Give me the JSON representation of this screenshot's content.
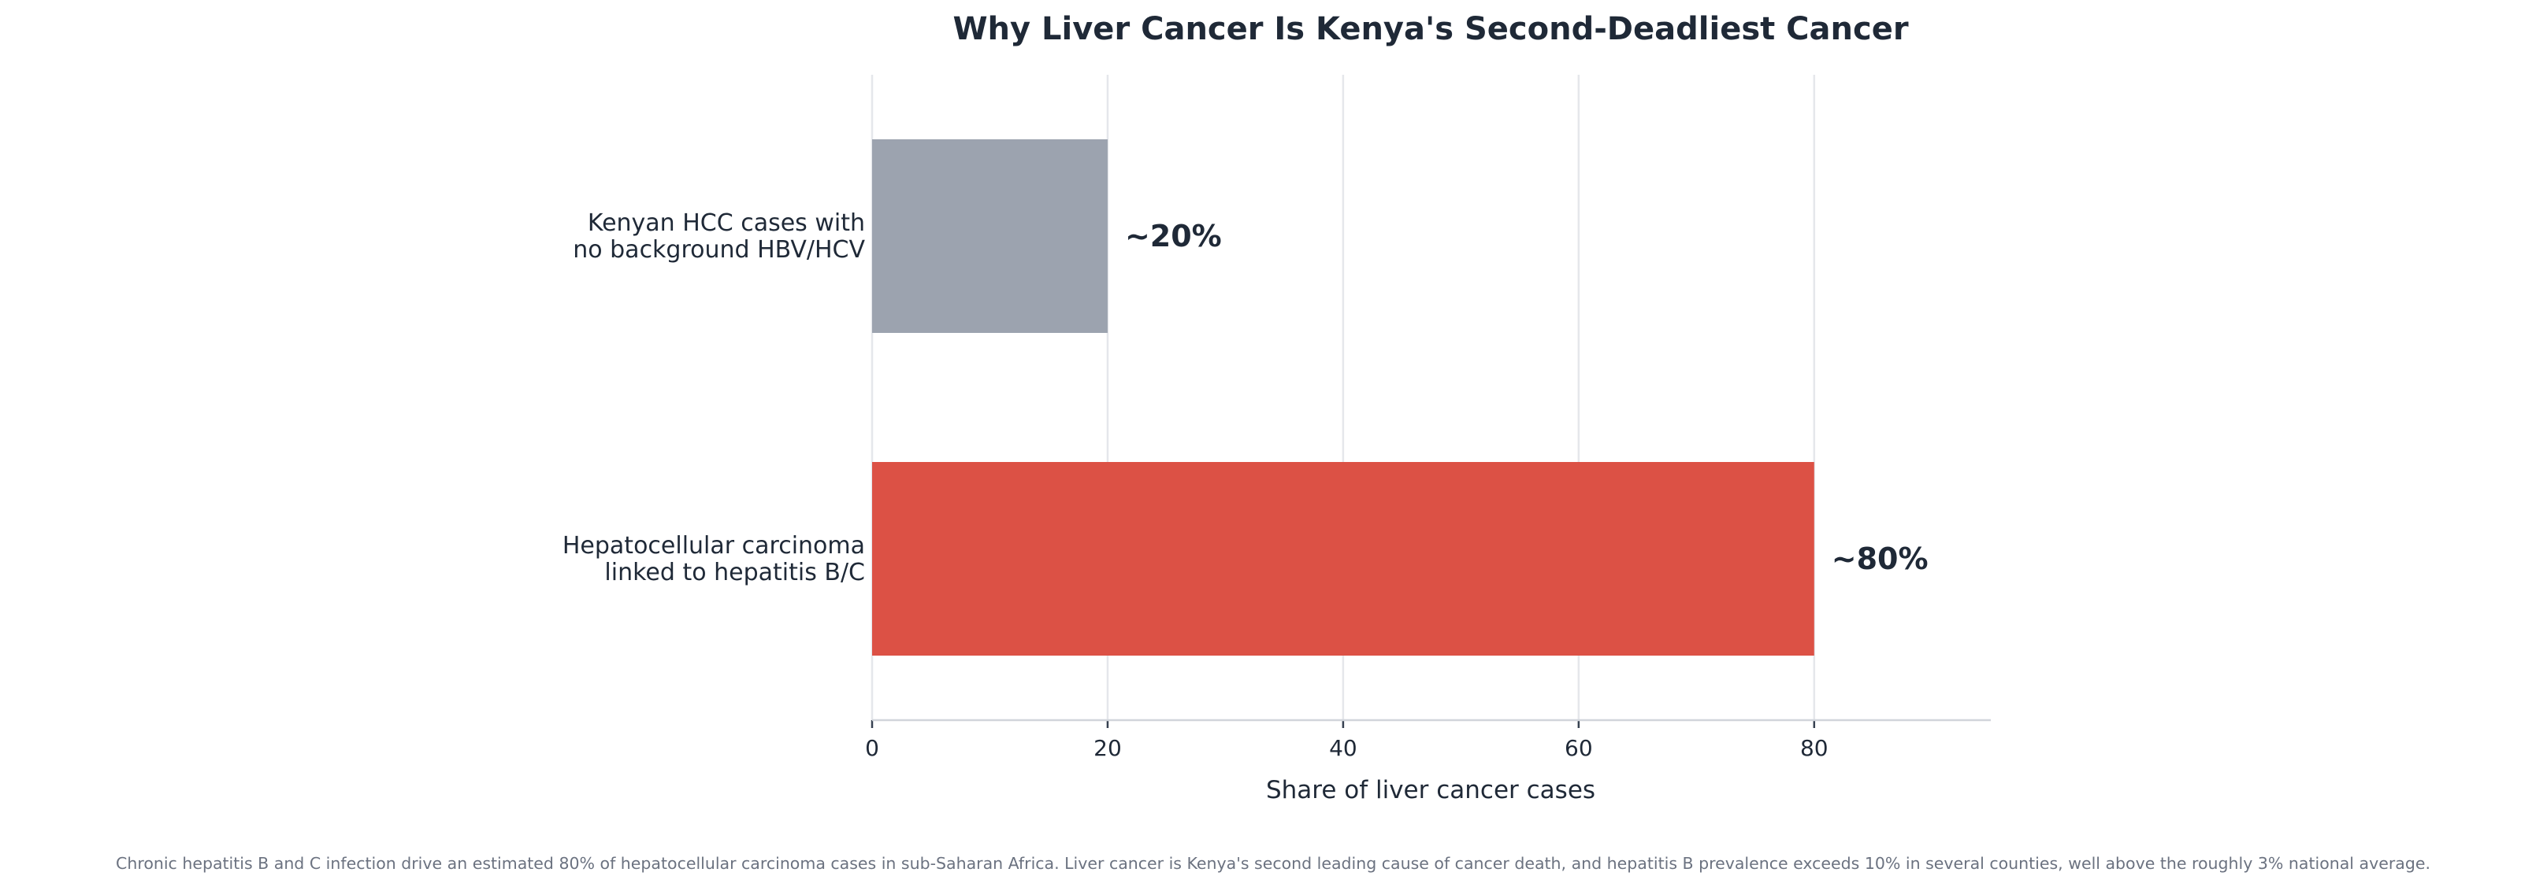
{
  "chart_data": {
    "type": "bar",
    "orientation": "horizontal",
    "title": "Why Liver Cancer Is Kenya's Second-Deadliest Cancer",
    "xlabel": "Share of liver cancer cases",
    "ylabel": "",
    "xlim": [
      0,
      95
    ],
    "xticks": [
      0,
      20,
      40,
      60,
      80
    ],
    "grid": "vertical",
    "bars": [
      {
        "lines": [
          "Kenyan HCC cases with",
          "no background HBV/HCV"
        ],
        "value": 20,
        "label": "~20%",
        "color": "#9ca3af"
      },
      {
        "lines": [
          "Hepatocellular carcinoma",
          "linked to hepatitis B/C"
        ],
        "value": 80,
        "label": "~80%",
        "color": "#dc5145"
      }
    ],
    "footnote": "Chronic hepatitis B and C infection drive an estimated 80% of hepatocellular carcinoma cases in sub-Saharan Africa. Liver cancer is Kenya's second leading cause of cancer death, and hepatitis B prevalence exceeds 10% in several counties, well above the roughly 3% national average."
  }
}
